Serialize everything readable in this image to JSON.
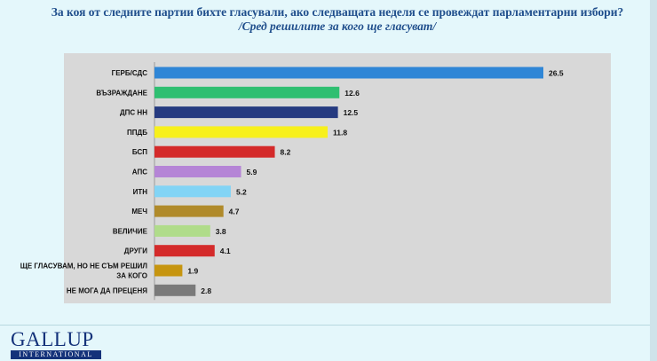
{
  "header": {
    "title": "За коя от следните партии бихте  гласували,  ако следващата неделя се провеждат парламентарни избори?",
    "subtitle": "/Сред решилите за кого ще гласуват/"
  },
  "logo": {
    "main": "GALLUP",
    "sub": "INTERNATIONAL"
  },
  "chart_data": {
    "type": "bar",
    "orientation": "horizontal",
    "categories": [
      "ГЕРБ/СДС",
      "ВЪЗРАЖДАНЕ",
      "ДПС НН",
      "ППДБ",
      "БСП",
      "АПС",
      "ИТН",
      "МЕЧ",
      "ВЕЛИЧИЕ",
      "ДРУГИ",
      "ЩЕ ГЛАСУВАМ, НО НЕ СЪМ РЕШИЛ|ЗА КОГО",
      "НЕ МОГА ДА ПРЕЦЕНЯ"
    ],
    "values": [
      26.5,
      12.6,
      12.5,
      11.8,
      8.2,
      5.9,
      5.2,
      4.7,
      3.8,
      4.1,
      1.9,
      2.8
    ],
    "data_labels": [
      "26.5",
      "12.6",
      "12.5",
      "11.8",
      "8.2",
      "5.9",
      "5.2",
      "4.7",
      "3.8",
      "4.1",
      "1.9",
      "2.8"
    ],
    "colors": [
      "#2f86d6",
      "#2fbf71",
      "#253a80",
      "#f7f01b",
      "#d42a2a",
      "#b585d6",
      "#82d4f5",
      "#b08a2a",
      "#b0dc8a",
      "#d42a2a",
      "#c69510",
      "#7a7a7a"
    ],
    "xlim": [
      0,
      30
    ],
    "grid": false,
    "legend": "none"
  }
}
